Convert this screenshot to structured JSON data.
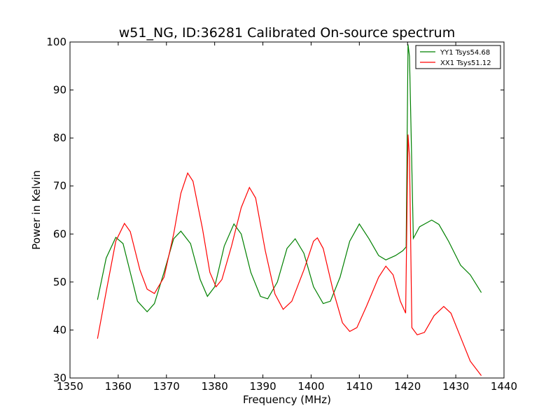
{
  "chart_data": {
    "type": "line",
    "title": "w51_NG, ID:36281 Calibrated On-source spectrum",
    "xlabel": "Frequency (MHz)",
    "ylabel": "Power in Kelvin",
    "xlim": [
      1350,
      1440
    ],
    "ylim": [
      30,
      100
    ],
    "xticks": [
      1350,
      1360,
      1370,
      1380,
      1390,
      1400,
      1410,
      1420,
      1430,
      1440
    ],
    "yticks": [
      30,
      40,
      50,
      60,
      70,
      80,
      90,
      100
    ],
    "grid": false,
    "legend_position": "top-right",
    "series": [
      {
        "name": "YY1 Tsys54.68",
        "color": "#008000",
        "points": [
          [
            1355.7,
            46.3
          ],
          [
            1357.5,
            55.0
          ],
          [
            1359.5,
            59.3
          ],
          [
            1361.0,
            58.0
          ],
          [
            1362.5,
            52.0
          ],
          [
            1364.0,
            46.0
          ],
          [
            1366.0,
            43.8
          ],
          [
            1367.5,
            45.5
          ],
          [
            1369.5,
            52.0
          ],
          [
            1371.5,
            59.0
          ],
          [
            1373.0,
            60.6
          ],
          [
            1375.0,
            58.0
          ],
          [
            1377.0,
            50.5
          ],
          [
            1378.5,
            47.0
          ],
          [
            1380.0,
            49.0
          ],
          [
            1382.0,
            57.5
          ],
          [
            1384.0,
            62.1
          ],
          [
            1385.5,
            60.0
          ],
          [
            1387.5,
            52.0
          ],
          [
            1389.5,
            47.0
          ],
          [
            1391.0,
            46.5
          ],
          [
            1393.0,
            50.0
          ],
          [
            1395.0,
            57.0
          ],
          [
            1396.7,
            59.0
          ],
          [
            1398.5,
            56.0
          ],
          [
            1400.5,
            49.0
          ],
          [
            1402.5,
            45.5
          ],
          [
            1404.0,
            46.0
          ],
          [
            1406.0,
            51.0
          ],
          [
            1408.0,
            58.5
          ],
          [
            1410.0,
            62.1
          ],
          [
            1412.0,
            59.0
          ],
          [
            1414.0,
            55.5
          ],
          [
            1415.5,
            54.6
          ],
          [
            1417.5,
            55.5
          ],
          [
            1419.0,
            56.5
          ],
          [
            1419.7,
            57.3
          ],
          [
            1420.1,
            99.5
          ],
          [
            1420.4,
            97.0
          ],
          [
            1421.2,
            59.1
          ],
          [
            1422.5,
            61.5
          ],
          [
            1425.0,
            62.9
          ],
          [
            1426.5,
            62.0
          ],
          [
            1428.5,
            58.5
          ],
          [
            1431.0,
            53.5
          ],
          [
            1433.0,
            51.5
          ],
          [
            1435.3,
            47.8
          ]
        ]
      },
      {
        "name": "XX1 Tsys51.12",
        "color": "#ff0000",
        "points": [
          [
            1355.7,
            38.2
          ],
          [
            1357.5,
            48.0
          ],
          [
            1359.5,
            58.5
          ],
          [
            1361.3,
            62.2
          ],
          [
            1362.5,
            60.5
          ],
          [
            1364.5,
            52.5
          ],
          [
            1366.0,
            48.5
          ],
          [
            1367.5,
            47.6
          ],
          [
            1369.5,
            51.0
          ],
          [
            1371.5,
            60.0
          ],
          [
            1373.0,
            68.5
          ],
          [
            1374.4,
            72.7
          ],
          [
            1375.5,
            71.0
          ],
          [
            1377.5,
            61.0
          ],
          [
            1379.0,
            52.0
          ],
          [
            1380.3,
            49.0
          ],
          [
            1381.5,
            50.5
          ],
          [
            1383.5,
            57.5
          ],
          [
            1385.5,
            65.5
          ],
          [
            1387.2,
            69.7
          ],
          [
            1388.5,
            67.5
          ],
          [
            1390.5,
            56.5
          ],
          [
            1392.5,
            47.5
          ],
          [
            1394.2,
            44.3
          ],
          [
            1396.0,
            46.0
          ],
          [
            1398.5,
            52.5
          ],
          [
            1400.5,
            58.5
          ],
          [
            1401.3,
            59.2
          ],
          [
            1402.5,
            57.0
          ],
          [
            1404.5,
            48.5
          ],
          [
            1406.5,
            41.5
          ],
          [
            1408.0,
            39.7
          ],
          [
            1409.5,
            40.5
          ],
          [
            1411.5,
            45.0
          ],
          [
            1414.0,
            51.0
          ],
          [
            1415.5,
            53.3
          ],
          [
            1417.0,
            51.5
          ],
          [
            1418.5,
            46.0
          ],
          [
            1419.6,
            43.5
          ],
          [
            1420.1,
            80.7
          ],
          [
            1420.4,
            76.0
          ],
          [
            1420.9,
            40.5
          ],
          [
            1422.0,
            39.0
          ],
          [
            1423.5,
            39.5
          ],
          [
            1425.5,
            43.0
          ],
          [
            1427.5,
            44.9
          ],
          [
            1429.0,
            43.5
          ],
          [
            1431.0,
            38.5
          ],
          [
            1433.0,
            33.5
          ],
          [
            1435.3,
            30.5
          ]
        ]
      }
    ]
  }
}
